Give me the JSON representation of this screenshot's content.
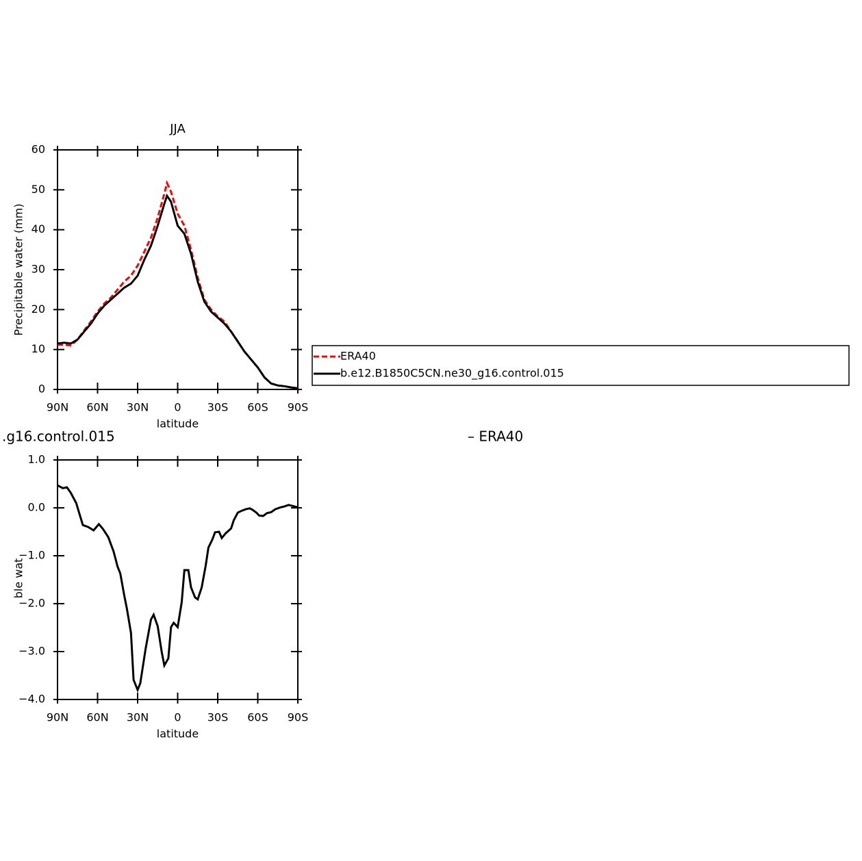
{
  "chart_data": [
    {
      "type": "line",
      "title": "JJA",
      "ylabel": "Precipitable water (mm)",
      "xlabel": "latitude",
      "xlim": [
        90,
        -90
      ],
      "ylim": [
        0,
        60
      ],
      "xticks": [
        {
          "value": 90,
          "label": "90N"
        },
        {
          "value": 60,
          "label": "60N"
        },
        {
          "value": 30,
          "label": "30N"
        },
        0,
        {
          "value": -30,
          "label": "30S"
        },
        {
          "value": -60,
          "label": "60S"
        },
        {
          "value": -90,
          "label": "90S"
        }
      ],
      "yticks": [
        0,
        10,
        20,
        30,
        40,
        50,
        60
      ],
      "x": [
        90,
        85,
        80,
        75,
        70,
        65,
        60,
        55,
        50,
        45,
        40,
        35,
        30,
        25,
        20,
        15,
        10,
        8,
        5,
        0,
        -5,
        -10,
        -15,
        -20,
        -25,
        -30,
        -35,
        -40,
        -45,
        -50,
        -55,
        -60,
        -65,
        -70,
        -75,
        -80,
        -85,
        -90
      ],
      "series": [
        {
          "name": "ERA40",
          "color": "#ff0000",
          "dash": true,
          "values": [
            11.2,
            11.2,
            11.0,
            12.5,
            14.8,
            17,
            19.5,
            21.5,
            23,
            25,
            27,
            28.5,
            31,
            34.5,
            38,
            43,
            49,
            51.7,
            49.5,
            44,
            41,
            35,
            28,
            22.5,
            20,
            18.3,
            17,
            14.5,
            12,
            9.5,
            7.5,
            5.5,
            3,
            1.5,
            1,
            0.8,
            0.5,
            0.2
          ]
        },
        {
          "name": "b.e12.B1850C5CN.ne30_g16.control.015",
          "color": "#000000",
          "dash": false,
          "values": [
            11.5,
            11.7,
            11.5,
            12.5,
            14.5,
            16.5,
            19,
            21,
            22.5,
            24,
            25.5,
            26.5,
            28.5,
            32.5,
            36,
            41,
            46.5,
            48.5,
            47,
            41,
            39,
            34,
            27,
            22,
            19.5,
            18,
            16.5,
            14.5,
            12,
            9.5,
            7.5,
            5.5,
            3,
            1.5,
            1,
            0.8,
            0.5,
            0.3
          ]
        }
      ]
    },
    {
      "type": "line",
      "title_left": ".g16.control.015",
      "title_right": "– ERA40",
      "ylabel": "Precipitable water (mm)",
      "xlabel": "latitude",
      "xlim": [
        90,
        -90
      ],
      "ylim": [
        -4,
        1
      ],
      "xticks": [
        {
          "value": 90,
          "label": "90N"
        },
        {
          "value": 60,
          "label": "60N"
        },
        {
          "value": 30,
          "label": "30N"
        },
        0,
        {
          "value": -30,
          "label": "30S"
        },
        {
          "value": -60,
          "label": "60S"
        },
        {
          "value": -90,
          "label": "90S"
        }
      ],
      "yticks": [
        {
          "value": -4,
          "label": "−4.0"
        },
        {
          "value": -3,
          "label": "−3.0"
        },
        {
          "value": -2,
          "label": "−2.0"
        },
        {
          "value": -1,
          "label": "−1.0"
        },
        {
          "value": 0,
          "label": "0.0"
        },
        {
          "value": 1,
          "label": "1.0"
        }
      ],
      "x": [
        90,
        86,
        83,
        80,
        76,
        71,
        67,
        63,
        59,
        56,
        52,
        48,
        45,
        43,
        40,
        38,
        35,
        33,
        30,
        28,
        24,
        20,
        18,
        15,
        12,
        10,
        7,
        5,
        3,
        0,
        -3,
        -5,
        -8,
        -10,
        -13,
        -15,
        -18,
        -21,
        -23,
        -26,
        -28,
        -31,
        -33,
        -36,
        -40,
        -42,
        -45,
        -48,
        -51,
        -54,
        -56,
        -59,
        -61,
        -64,
        -67,
        -70,
        -73,
        -77,
        -80,
        -83,
        -86,
        -90
      ],
      "series": [
        {
          "name": null,
          "color": "#000000",
          "dash": false,
          "values": [
            0.47,
            0.41,
            0.43,
            0.31,
            0.1,
            -0.36,
            -0.4,
            -0.47,
            -0.34,
            -0.44,
            -0.61,
            -0.91,
            -1.23,
            -1.37,
            -1.83,
            -2.11,
            -2.61,
            -3.59,
            -3.8,
            -3.66,
            -2.94,
            -2.33,
            -2.23,
            -2.47,
            -3.0,
            -3.29,
            -3.14,
            -2.49,
            -2.4,
            -2.49,
            -1.97,
            -1.3,
            -1.3,
            -1.66,
            -1.87,
            -1.91,
            -1.66,
            -1.2,
            -0.83,
            -0.66,
            -0.51,
            -0.5,
            -0.63,
            -0.53,
            -0.43,
            -0.26,
            -0.1,
            -0.06,
            -0.03,
            -0.01,
            -0.04,
            -0.1,
            -0.16,
            -0.17,
            -0.11,
            -0.09,
            -0.03,
            0.01,
            0.03,
            0.06,
            0.04,
            0.01
          ]
        }
      ]
    }
  ]
}
